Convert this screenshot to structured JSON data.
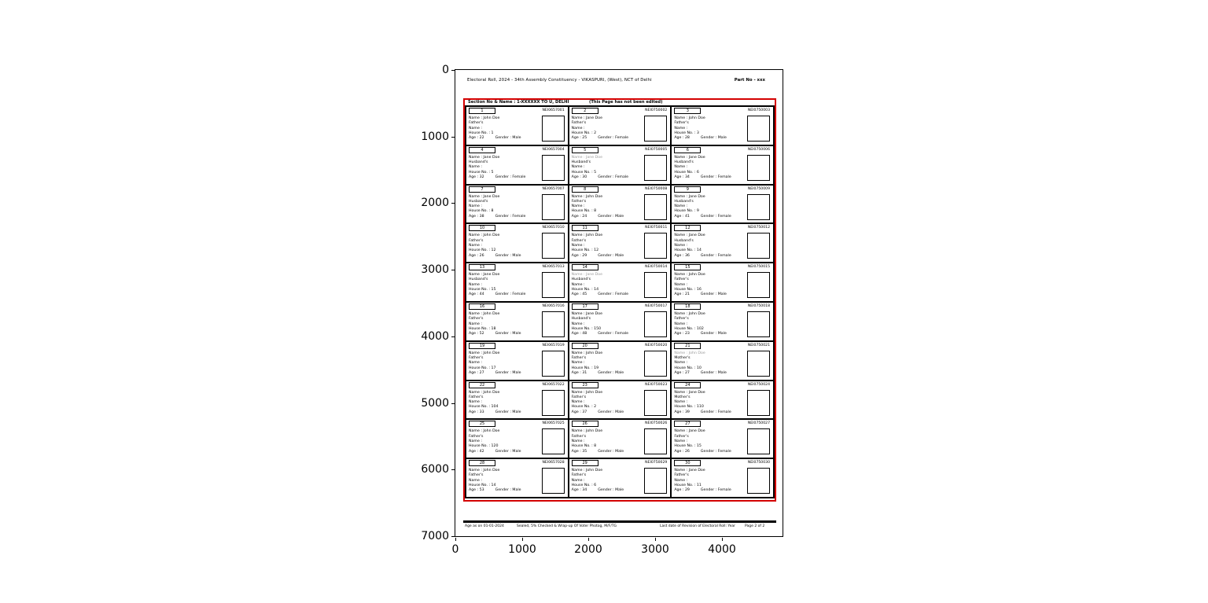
{
  "figure": {
    "y_ticks": [
      "0",
      "1000",
      "2000",
      "3000",
      "4000",
      "5000",
      "6000",
      "7000"
    ],
    "x_ticks": [
      "0",
      "1000",
      "2000",
      "3000",
      "4000"
    ]
  },
  "colors": {
    "highlight_red": "#d40000",
    "deleted_gray": "#9a9a9a"
  },
  "document": {
    "header_left": "Electoral Roll, 2024 - 34th Assembly Constituency - VIKASPURI, (West), NCT of Delhi",
    "header_right": "Part No - xxx",
    "section_label": "Section No & Name : 1-XXXXXX TO U, DELHI",
    "section_note": "(This Page has not been edited)",
    "footer_segments": [
      "Age as on 01-01-2024",
      "Sealed, 5% Checked & Wrap-up Of Voter Photog, M/F/TG",
      "Last date of Revision of Electoral Roll: Year",
      "Page 2 of 2"
    ]
  },
  "labels": {
    "name": "Name :",
    "relation_suffix": "Name :",
    "house": "House No. :",
    "age": "Age :",
    "gender": "Gender :"
  },
  "voters": [
    {
      "serial": "1",
      "epic": "NEI0657001",
      "name": "John Doe",
      "relation": "Father's",
      "house": "1",
      "age": "22",
      "gender": "Male",
      "muted": false
    },
    {
      "serial": "2",
      "epic": "NEI0750002",
      "name": "Jane Doe",
      "relation": "Father's",
      "house": "2",
      "age": "25",
      "gender": "Female",
      "muted": false
    },
    {
      "serial": "3",
      "epic": "NEI0750003",
      "name": "John Doe",
      "relation": "Father's",
      "house": "3",
      "age": "28",
      "gender": "Male",
      "muted": false
    },
    {
      "serial": "4",
      "epic": "NEI0657004",
      "name": "Jane Doe",
      "relation": "Husband's",
      "house": "5",
      "age": "32",
      "gender": "Female",
      "muted": false
    },
    {
      "serial": "5",
      "epic": "NEI0750005",
      "name": "Jane Doe",
      "relation": "Husband's",
      "house": "5",
      "age": "30",
      "gender": "Female",
      "muted": true
    },
    {
      "serial": "6",
      "epic": "NEI0750006",
      "name": "Jane Doe",
      "relation": "Husband's",
      "house": "6",
      "age": "34",
      "gender": "Female",
      "muted": false
    },
    {
      "serial": "7",
      "epic": "NEI0657007",
      "name": "Jane Doe",
      "relation": "Husband's",
      "house": "8",
      "age": "38",
      "gender": "Female",
      "muted": false
    },
    {
      "serial": "8",
      "epic": "NEI0750008",
      "name": "John Doe",
      "relation": "Father's",
      "house": "8",
      "age": "24",
      "gender": "Male",
      "muted": false
    },
    {
      "serial": "9",
      "epic": "NEI0750009",
      "name": "Jane Doe",
      "relation": "Husband's",
      "house": "9",
      "age": "41",
      "gender": "Female",
      "muted": false
    },
    {
      "serial": "10",
      "epic": "NEI0657010",
      "name": "John Doe",
      "relation": "Father's",
      "house": "12",
      "age": "26",
      "gender": "Male",
      "muted": false
    },
    {
      "serial": "11",
      "epic": "NEI0750011",
      "name": "John Doe",
      "relation": "Father's",
      "house": "12",
      "age": "29",
      "gender": "Male",
      "muted": false
    },
    {
      "serial": "12",
      "epic": "NEI0750012",
      "name": "Jane Doe",
      "relation": "Husband's",
      "house": "14",
      "age": "36",
      "gender": "Female",
      "muted": false
    },
    {
      "serial": "13",
      "epic": "NEI0657013",
      "name": "Jane Doe",
      "relation": "Husband's",
      "house": "15",
      "age": "44",
      "gender": "Female",
      "muted": false
    },
    {
      "serial": "14",
      "epic": "NEI0750014",
      "name": "Jane Doe",
      "relation": "Husband's",
      "house": "14",
      "age": "45",
      "gender": "Female",
      "muted": true
    },
    {
      "serial": "15",
      "epic": "NEI0750015",
      "name": "John Doe",
      "relation": "Father's",
      "house": "16",
      "age": "21",
      "gender": "Male",
      "muted": false
    },
    {
      "serial": "16",
      "epic": "NEI0657016",
      "name": "John Doe",
      "relation": "Father's",
      "house": "18",
      "age": "52",
      "gender": "Male",
      "muted": false
    },
    {
      "serial": "17",
      "epic": "NEI0750017",
      "name": "Jane Doe",
      "relation": "Husband's",
      "house": "150",
      "age": "48",
      "gender": "Female",
      "muted": false
    },
    {
      "serial": "18",
      "epic": "NEI0750018",
      "name": "John Doe",
      "relation": "Father's",
      "house": "102",
      "age": "23",
      "gender": "Male",
      "muted": false
    },
    {
      "serial": "19",
      "epic": "NEI0657019",
      "name": "John Doe",
      "relation": "Father's",
      "house": "17",
      "age": "27",
      "gender": "Male",
      "muted": false
    },
    {
      "serial": "20",
      "epic": "NEI0750020",
      "name": "John Doe",
      "relation": "Father's",
      "house": "19",
      "age": "31",
      "gender": "Male",
      "muted": false
    },
    {
      "serial": "21",
      "epic": "NEI0750021",
      "name": "John Doe",
      "relation": "Mother's",
      "house": "10",
      "age": "27",
      "gender": "Male",
      "muted": true
    },
    {
      "serial": "22",
      "epic": "NEI0657022",
      "name": "John Doe",
      "relation": "Father's",
      "house": "104",
      "age": "33",
      "gender": "Male",
      "muted": false
    },
    {
      "serial": "23",
      "epic": "NEI0750023",
      "name": "John Doe",
      "relation": "Father's",
      "house": "2",
      "age": "37",
      "gender": "Male",
      "muted": false
    },
    {
      "serial": "24",
      "epic": "NEI0750024",
      "name": "Jane Doe",
      "relation": "Mother's",
      "house": "110",
      "age": "39",
      "gender": "Female",
      "muted": false
    },
    {
      "serial": "25",
      "epic": "NEI0657025",
      "name": "John Doe",
      "relation": "Father's",
      "house": "120",
      "age": "42",
      "gender": "Male",
      "muted": false
    },
    {
      "serial": "26",
      "epic": "NEI0750026",
      "name": "John Doe",
      "relation": "Father's",
      "house": "8",
      "age": "35",
      "gender": "Male",
      "muted": false
    },
    {
      "serial": "27",
      "epic": "NEI0750027",
      "name": "Jane Doe",
      "relation": "Father's",
      "house": "15",
      "age": "26",
      "gender": "Female",
      "muted": false
    },
    {
      "serial": "28",
      "epic": "NEI0657028",
      "name": "John Doe",
      "relation": "Father's",
      "house": "14",
      "age": "53",
      "gender": "Male",
      "muted": false
    },
    {
      "serial": "29",
      "epic": "NEI0750029",
      "name": "John Doe",
      "relation": "Father's",
      "house": "6",
      "age": "34",
      "gender": "Male",
      "muted": false
    },
    {
      "serial": "30",
      "epic": "NEI0750030",
      "name": "Jane Doe",
      "relation": "Father's",
      "house": "11",
      "age": "29",
      "gender": "Female",
      "muted": false
    }
  ]
}
